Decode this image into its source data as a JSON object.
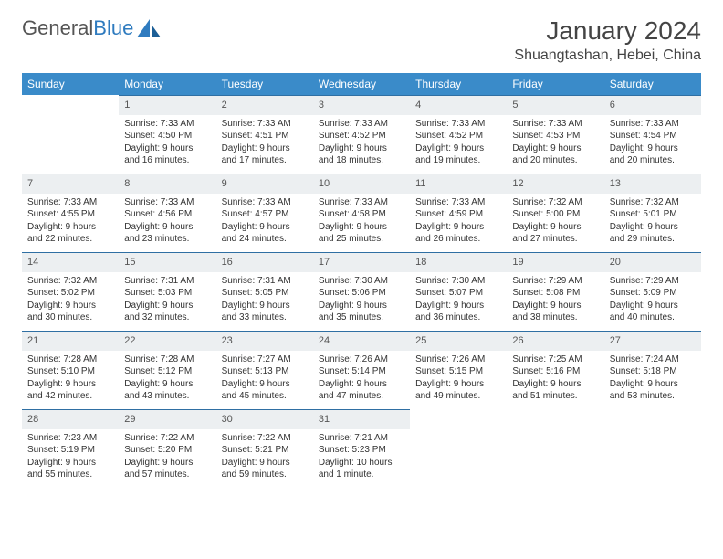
{
  "logo": {
    "text1": "General",
    "text2": "Blue"
  },
  "title": "January 2024",
  "location": "Shuangtashan, Hebei, China",
  "colors": {
    "header_bg": "#3a8bc9",
    "header_text": "#ffffff",
    "daynum_bg": "#eceff1",
    "border": "#2f6fa3",
    "background": "#ffffff"
  },
  "weekdays": [
    "Sunday",
    "Monday",
    "Tuesday",
    "Wednesday",
    "Thursday",
    "Friday",
    "Saturday"
  ],
  "weeks": [
    [
      null,
      {
        "n": "1",
        "sr": "Sunrise: 7:33 AM",
        "ss": "Sunset: 4:50 PM",
        "dl": "Daylight: 9 hours and 16 minutes."
      },
      {
        "n": "2",
        "sr": "Sunrise: 7:33 AM",
        "ss": "Sunset: 4:51 PM",
        "dl": "Daylight: 9 hours and 17 minutes."
      },
      {
        "n": "3",
        "sr": "Sunrise: 7:33 AM",
        "ss": "Sunset: 4:52 PM",
        "dl": "Daylight: 9 hours and 18 minutes."
      },
      {
        "n": "4",
        "sr": "Sunrise: 7:33 AM",
        "ss": "Sunset: 4:52 PM",
        "dl": "Daylight: 9 hours and 19 minutes."
      },
      {
        "n": "5",
        "sr": "Sunrise: 7:33 AM",
        "ss": "Sunset: 4:53 PM",
        "dl": "Daylight: 9 hours and 20 minutes."
      },
      {
        "n": "6",
        "sr": "Sunrise: 7:33 AM",
        "ss": "Sunset: 4:54 PM",
        "dl": "Daylight: 9 hours and 20 minutes."
      }
    ],
    [
      {
        "n": "7",
        "sr": "Sunrise: 7:33 AM",
        "ss": "Sunset: 4:55 PM",
        "dl": "Daylight: 9 hours and 22 minutes."
      },
      {
        "n": "8",
        "sr": "Sunrise: 7:33 AM",
        "ss": "Sunset: 4:56 PM",
        "dl": "Daylight: 9 hours and 23 minutes."
      },
      {
        "n": "9",
        "sr": "Sunrise: 7:33 AM",
        "ss": "Sunset: 4:57 PM",
        "dl": "Daylight: 9 hours and 24 minutes."
      },
      {
        "n": "10",
        "sr": "Sunrise: 7:33 AM",
        "ss": "Sunset: 4:58 PM",
        "dl": "Daylight: 9 hours and 25 minutes."
      },
      {
        "n": "11",
        "sr": "Sunrise: 7:33 AM",
        "ss": "Sunset: 4:59 PM",
        "dl": "Daylight: 9 hours and 26 minutes."
      },
      {
        "n": "12",
        "sr": "Sunrise: 7:32 AM",
        "ss": "Sunset: 5:00 PM",
        "dl": "Daylight: 9 hours and 27 minutes."
      },
      {
        "n": "13",
        "sr": "Sunrise: 7:32 AM",
        "ss": "Sunset: 5:01 PM",
        "dl": "Daylight: 9 hours and 29 minutes."
      }
    ],
    [
      {
        "n": "14",
        "sr": "Sunrise: 7:32 AM",
        "ss": "Sunset: 5:02 PM",
        "dl": "Daylight: 9 hours and 30 minutes."
      },
      {
        "n": "15",
        "sr": "Sunrise: 7:31 AM",
        "ss": "Sunset: 5:03 PM",
        "dl": "Daylight: 9 hours and 32 minutes."
      },
      {
        "n": "16",
        "sr": "Sunrise: 7:31 AM",
        "ss": "Sunset: 5:05 PM",
        "dl": "Daylight: 9 hours and 33 minutes."
      },
      {
        "n": "17",
        "sr": "Sunrise: 7:30 AM",
        "ss": "Sunset: 5:06 PM",
        "dl": "Daylight: 9 hours and 35 minutes."
      },
      {
        "n": "18",
        "sr": "Sunrise: 7:30 AM",
        "ss": "Sunset: 5:07 PM",
        "dl": "Daylight: 9 hours and 36 minutes."
      },
      {
        "n": "19",
        "sr": "Sunrise: 7:29 AM",
        "ss": "Sunset: 5:08 PM",
        "dl": "Daylight: 9 hours and 38 minutes."
      },
      {
        "n": "20",
        "sr": "Sunrise: 7:29 AM",
        "ss": "Sunset: 5:09 PM",
        "dl": "Daylight: 9 hours and 40 minutes."
      }
    ],
    [
      {
        "n": "21",
        "sr": "Sunrise: 7:28 AM",
        "ss": "Sunset: 5:10 PM",
        "dl": "Daylight: 9 hours and 42 minutes."
      },
      {
        "n": "22",
        "sr": "Sunrise: 7:28 AM",
        "ss": "Sunset: 5:12 PM",
        "dl": "Daylight: 9 hours and 43 minutes."
      },
      {
        "n": "23",
        "sr": "Sunrise: 7:27 AM",
        "ss": "Sunset: 5:13 PM",
        "dl": "Daylight: 9 hours and 45 minutes."
      },
      {
        "n": "24",
        "sr": "Sunrise: 7:26 AM",
        "ss": "Sunset: 5:14 PM",
        "dl": "Daylight: 9 hours and 47 minutes."
      },
      {
        "n": "25",
        "sr": "Sunrise: 7:26 AM",
        "ss": "Sunset: 5:15 PM",
        "dl": "Daylight: 9 hours and 49 minutes."
      },
      {
        "n": "26",
        "sr": "Sunrise: 7:25 AM",
        "ss": "Sunset: 5:16 PM",
        "dl": "Daylight: 9 hours and 51 minutes."
      },
      {
        "n": "27",
        "sr": "Sunrise: 7:24 AM",
        "ss": "Sunset: 5:18 PM",
        "dl": "Daylight: 9 hours and 53 minutes."
      }
    ],
    [
      {
        "n": "28",
        "sr": "Sunrise: 7:23 AM",
        "ss": "Sunset: 5:19 PM",
        "dl": "Daylight: 9 hours and 55 minutes."
      },
      {
        "n": "29",
        "sr": "Sunrise: 7:22 AM",
        "ss": "Sunset: 5:20 PM",
        "dl": "Daylight: 9 hours and 57 minutes."
      },
      {
        "n": "30",
        "sr": "Sunrise: 7:22 AM",
        "ss": "Sunset: 5:21 PM",
        "dl": "Daylight: 9 hours and 59 minutes."
      },
      {
        "n": "31",
        "sr": "Sunrise: 7:21 AM",
        "ss": "Sunset: 5:23 PM",
        "dl": "Daylight: 10 hours and 1 minute."
      },
      null,
      null,
      null
    ]
  ]
}
